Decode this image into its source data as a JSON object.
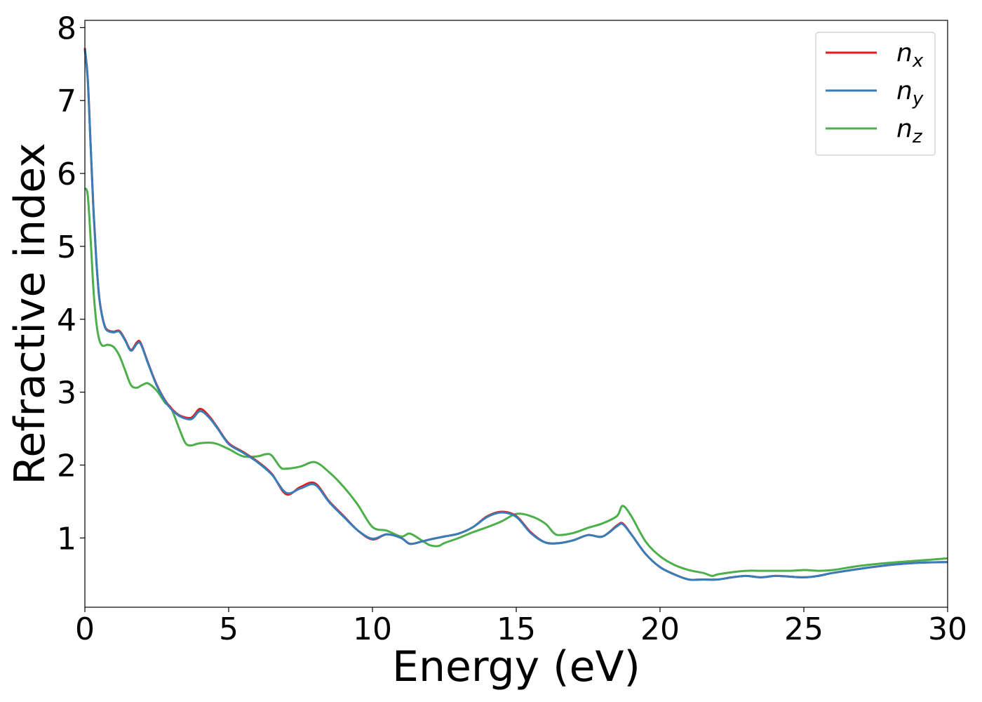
{
  "chart_data": {
    "type": "line",
    "xlabel": "Energy (eV)",
    "ylabel": "Refractive index",
    "xlim": [
      0,
      30
    ],
    "ylim": [
      0.05,
      8.1
    ],
    "xticks": [
      "0",
      "5",
      "10",
      "15",
      "20",
      "25",
      "30"
    ],
    "yticks": [
      "1",
      "2",
      "3",
      "4",
      "5",
      "6",
      "7",
      "8"
    ],
    "grid": false,
    "legend_position": "top-right",
    "series": [
      {
        "name": "n",
        "subscript": "x",
        "color": "#e41a1c",
        "x": [
          0,
          0.1,
          0.2,
          0.3,
          0.4,
          0.5,
          0.6,
          0.7,
          0.8,
          1.0,
          1.2,
          1.4,
          1.6,
          1.8,
          1.9,
          2.0,
          2.2,
          2.5,
          2.8,
          3.0,
          3.3,
          3.7,
          4.0,
          4.3,
          4.6,
          5.0,
          5.5,
          6.0,
          6.5,
          7.0,
          7.5,
          8.0,
          8.5,
          9.0,
          9.5,
          10.0,
          10.5,
          11.0,
          11.3,
          11.7,
          12.0,
          12.5,
          13.0,
          13.5,
          14.0,
          14.5,
          15.0,
          15.5,
          16.0,
          16.5,
          17.0,
          17.5,
          18.0,
          18.5,
          18.7,
          19.0,
          19.5,
          20.0,
          20.5,
          21.0,
          21.5,
          22.0,
          22.5,
          23.0,
          23.5,
          24.0,
          24.5,
          25.0,
          25.5,
          26.0,
          27.0,
          28.0,
          29.0,
          30.0
        ],
        "values": [
          7.72,
          7.3,
          6.4,
          5.5,
          4.8,
          4.3,
          4.05,
          3.9,
          3.85,
          3.83,
          3.84,
          3.72,
          3.58,
          3.68,
          3.7,
          3.62,
          3.4,
          3.1,
          2.88,
          2.78,
          2.68,
          2.65,
          2.77,
          2.68,
          2.52,
          2.3,
          2.18,
          2.05,
          1.88,
          1.6,
          1.7,
          1.75,
          1.5,
          1.3,
          1.1,
          0.98,
          1.05,
          1.0,
          0.92,
          0.95,
          0.98,
          1.02,
          1.06,
          1.15,
          1.3,
          1.36,
          1.3,
          1.08,
          0.94,
          0.93,
          0.97,
          1.04,
          1.02,
          1.17,
          1.2,
          1.05,
          0.78,
          0.6,
          0.5,
          0.43,
          0.43,
          0.43,
          0.46,
          0.48,
          0.46,
          0.48,
          0.47,
          0.46,
          0.48,
          0.52,
          0.58,
          0.63,
          0.66,
          0.67
        ]
      },
      {
        "name": "n",
        "subscript": "y",
        "color": "#377eb8",
        "x": [
          0,
          0.1,
          0.2,
          0.3,
          0.4,
          0.5,
          0.6,
          0.7,
          0.8,
          1.0,
          1.2,
          1.4,
          1.6,
          1.8,
          1.9,
          2.0,
          2.2,
          2.5,
          2.8,
          3.0,
          3.3,
          3.7,
          4.0,
          4.3,
          4.6,
          5.0,
          5.5,
          6.0,
          6.5,
          7.0,
          7.5,
          8.0,
          8.5,
          9.0,
          9.5,
          10.0,
          10.5,
          11.0,
          11.3,
          11.7,
          12.0,
          12.5,
          13.0,
          13.5,
          14.0,
          14.5,
          15.0,
          15.5,
          16.0,
          16.5,
          17.0,
          17.5,
          18.0,
          18.5,
          18.7,
          19.0,
          19.5,
          20.0,
          20.5,
          21.0,
          21.5,
          22.0,
          22.5,
          23.0,
          23.5,
          24.0,
          24.5,
          25.0,
          25.5,
          26.0,
          27.0,
          28.0,
          29.0,
          30.0
        ],
        "values": [
          7.7,
          7.28,
          6.38,
          5.48,
          4.79,
          4.29,
          4.04,
          3.89,
          3.84,
          3.82,
          3.83,
          3.71,
          3.57,
          3.66,
          3.68,
          3.61,
          3.39,
          3.09,
          2.87,
          2.77,
          2.67,
          2.63,
          2.74,
          2.66,
          2.51,
          2.29,
          2.17,
          2.04,
          1.87,
          1.62,
          1.68,
          1.73,
          1.49,
          1.29,
          1.1,
          0.99,
          1.05,
          1.0,
          0.92,
          0.95,
          0.98,
          1.02,
          1.06,
          1.15,
          1.29,
          1.35,
          1.29,
          1.07,
          0.94,
          0.93,
          0.97,
          1.04,
          1.02,
          1.16,
          1.19,
          1.05,
          0.78,
          0.6,
          0.5,
          0.43,
          0.43,
          0.43,
          0.46,
          0.48,
          0.46,
          0.48,
          0.47,
          0.46,
          0.48,
          0.52,
          0.58,
          0.63,
          0.66,
          0.67
        ]
      },
      {
        "name": "n",
        "subscript": "z",
        "color": "#4daf4a",
        "x": [
          0,
          0.1,
          0.2,
          0.3,
          0.4,
          0.5,
          0.6,
          0.7,
          0.8,
          1.0,
          1.2,
          1.4,
          1.6,
          1.8,
          2.0,
          2.2,
          2.5,
          2.8,
          3.0,
          3.3,
          3.5,
          3.7,
          4.0,
          4.5,
          5.0,
          5.5,
          6.0,
          6.3,
          6.5,
          6.8,
          7.0,
          7.5,
          8.0,
          8.5,
          9.0,
          9.5,
          10.0,
          10.5,
          11.0,
          11.3,
          11.7,
          12.0,
          12.3,
          12.5,
          13.0,
          13.5,
          14.0,
          14.5,
          15.0,
          15.5,
          16.0,
          16.3,
          16.5,
          17.0,
          17.5,
          18.0,
          18.5,
          18.7,
          19.0,
          19.5,
          20.0,
          20.5,
          21.0,
          21.5,
          21.8,
          22.0,
          22.5,
          23.0,
          23.5,
          24.0,
          24.5,
          25.0,
          25.5,
          26.0,
          27.0,
          28.0,
          29.0,
          30.0
        ],
        "values": [
          5.8,
          5.7,
          5.1,
          4.4,
          3.95,
          3.72,
          3.64,
          3.64,
          3.65,
          3.62,
          3.5,
          3.3,
          3.1,
          3.06,
          3.1,
          3.12,
          3.02,
          2.85,
          2.78,
          2.48,
          2.3,
          2.27,
          2.3,
          2.3,
          2.22,
          2.12,
          2.12,
          2.15,
          2.13,
          1.97,
          1.95,
          1.98,
          2.04,
          1.9,
          1.7,
          1.45,
          1.15,
          1.1,
          1.02,
          1.06,
          0.97,
          0.9,
          0.89,
          0.93,
          1.0,
          1.08,
          1.15,
          1.23,
          1.33,
          1.3,
          1.2,
          1.07,
          1.04,
          1.07,
          1.14,
          1.2,
          1.3,
          1.44,
          1.3,
          0.95,
          0.75,
          0.63,
          0.56,
          0.52,
          0.48,
          0.5,
          0.53,
          0.55,
          0.55,
          0.55,
          0.55,
          0.56,
          0.55,
          0.56,
          0.62,
          0.66,
          0.69,
          0.72
        ]
      }
    ]
  }
}
